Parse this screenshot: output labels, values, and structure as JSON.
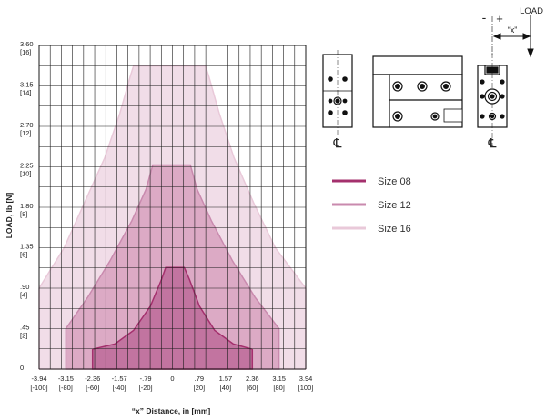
{
  "chart_data": {
    "type": "area",
    "title": "",
    "xlabel": "“x” Distance, in  [mm]",
    "ylabel": "LOAD, lb [N]",
    "xlim": [
      -3.94,
      3.94
    ],
    "ylim": [
      0,
      3.6
    ],
    "x_ticks": [
      {
        "value": -3.94,
        "label": "-3.94",
        "label2": "[-100]"
      },
      {
        "value": -3.15,
        "label": "-3.15",
        "label2": "[-80]"
      },
      {
        "value": -2.36,
        "label": "-2.36",
        "label2": "[-60]"
      },
      {
        "value": -1.57,
        "label": "-1.57",
        "label2": "[-40]"
      },
      {
        "value": -0.79,
        "label": "-.79",
        "label2": "[-20]"
      },
      {
        "value": 0,
        "label": "0",
        "label2": ""
      },
      {
        "value": 0.79,
        "label": ".79",
        "label2": "[20]"
      },
      {
        "value": 1.57,
        "label": "1.57",
        "label2": "[40]"
      },
      {
        "value": 2.36,
        "label": "2.36",
        "label2": "[60]"
      },
      {
        "value": 3.15,
        "label": "3.15",
        "label2": "[80]"
      },
      {
        "value": 3.94,
        "label": "3.94",
        "label2": "[100]"
      }
    ],
    "y_ticks": [
      {
        "value": 0,
        "label": "0",
        "label2": ""
      },
      {
        "value": 0.45,
        "label": ".45",
        "label2": "[2]"
      },
      {
        "value": 0.9,
        "label": ".90",
        "label2": "[4]"
      },
      {
        "value": 1.35,
        "label": "1.35",
        "label2": "[6]"
      },
      {
        "value": 1.8,
        "label": "1.80",
        "label2": "[8]"
      },
      {
        "value": 2.25,
        "label": "2.25",
        "label2": "[10]"
      },
      {
        "value": 2.7,
        "label": "2.70",
        "label2": "[12]"
      },
      {
        "value": 3.15,
        "label": "3.15",
        "label2": "[14]"
      },
      {
        "value": 3.6,
        "label": "3.60",
        "label2": "[16]"
      }
    ],
    "grid": true,
    "legend_position": "right",
    "series": [
      {
        "name": "Size 16",
        "color": "#f1dde8",
        "stroke": "#e9c9d9",
        "points": [
          [
            -3.94,
            0
          ],
          [
            -3.94,
            0.9
          ],
          [
            -3.2,
            1.35
          ],
          [
            -2.6,
            1.85
          ],
          [
            -2.0,
            2.35
          ],
          [
            -1.55,
            2.85
          ],
          [
            -1.25,
            3.25
          ],
          [
            -1.15,
            3.37
          ],
          [
            0.98,
            3.37
          ],
          [
            1.08,
            3.25
          ],
          [
            1.38,
            2.85
          ],
          [
            1.82,
            2.35
          ],
          [
            2.4,
            1.85
          ],
          [
            3.04,
            1.35
          ],
          [
            3.94,
            0.9
          ],
          [
            3.94,
            0
          ]
        ]
      },
      {
        "name": "Size 12",
        "color": "#dcaac5",
        "stroke": "#c98aae",
        "points": [
          [
            -3.15,
            0
          ],
          [
            -3.15,
            0.45
          ],
          [
            -2.5,
            0.8
          ],
          [
            -1.85,
            1.2
          ],
          [
            -1.2,
            1.65
          ],
          [
            -0.78,
            2.0
          ],
          [
            -0.58,
            2.27
          ],
          [
            0.53,
            2.27
          ],
          [
            0.73,
            2.0
          ],
          [
            1.15,
            1.65
          ],
          [
            1.78,
            1.2
          ],
          [
            2.44,
            0.8
          ],
          [
            3.15,
            0.45
          ],
          [
            3.15,
            0
          ]
        ]
      },
      {
        "name": "Size 08",
        "color": "#c274a0",
        "stroke": "#a4306d",
        "points": [
          [
            -2.36,
            0
          ],
          [
            -2.36,
            0.22
          ],
          [
            -1.7,
            0.28
          ],
          [
            -1.15,
            0.43
          ],
          [
            -0.65,
            0.7
          ],
          [
            -0.32,
            1.0
          ],
          [
            -0.2,
            1.13
          ],
          [
            0.35,
            1.13
          ],
          [
            0.5,
            1.0
          ],
          [
            0.8,
            0.7
          ],
          [
            1.25,
            0.43
          ],
          [
            1.8,
            0.28
          ],
          [
            2.36,
            0.22
          ],
          [
            2.36,
            0
          ]
        ]
      }
    ]
  },
  "diagram": {
    "load_label": "LOAD",
    "x_label": "“x”",
    "minus_sign": "-",
    "plus_sign": "+",
    "centerline_symbol": "℄"
  }
}
